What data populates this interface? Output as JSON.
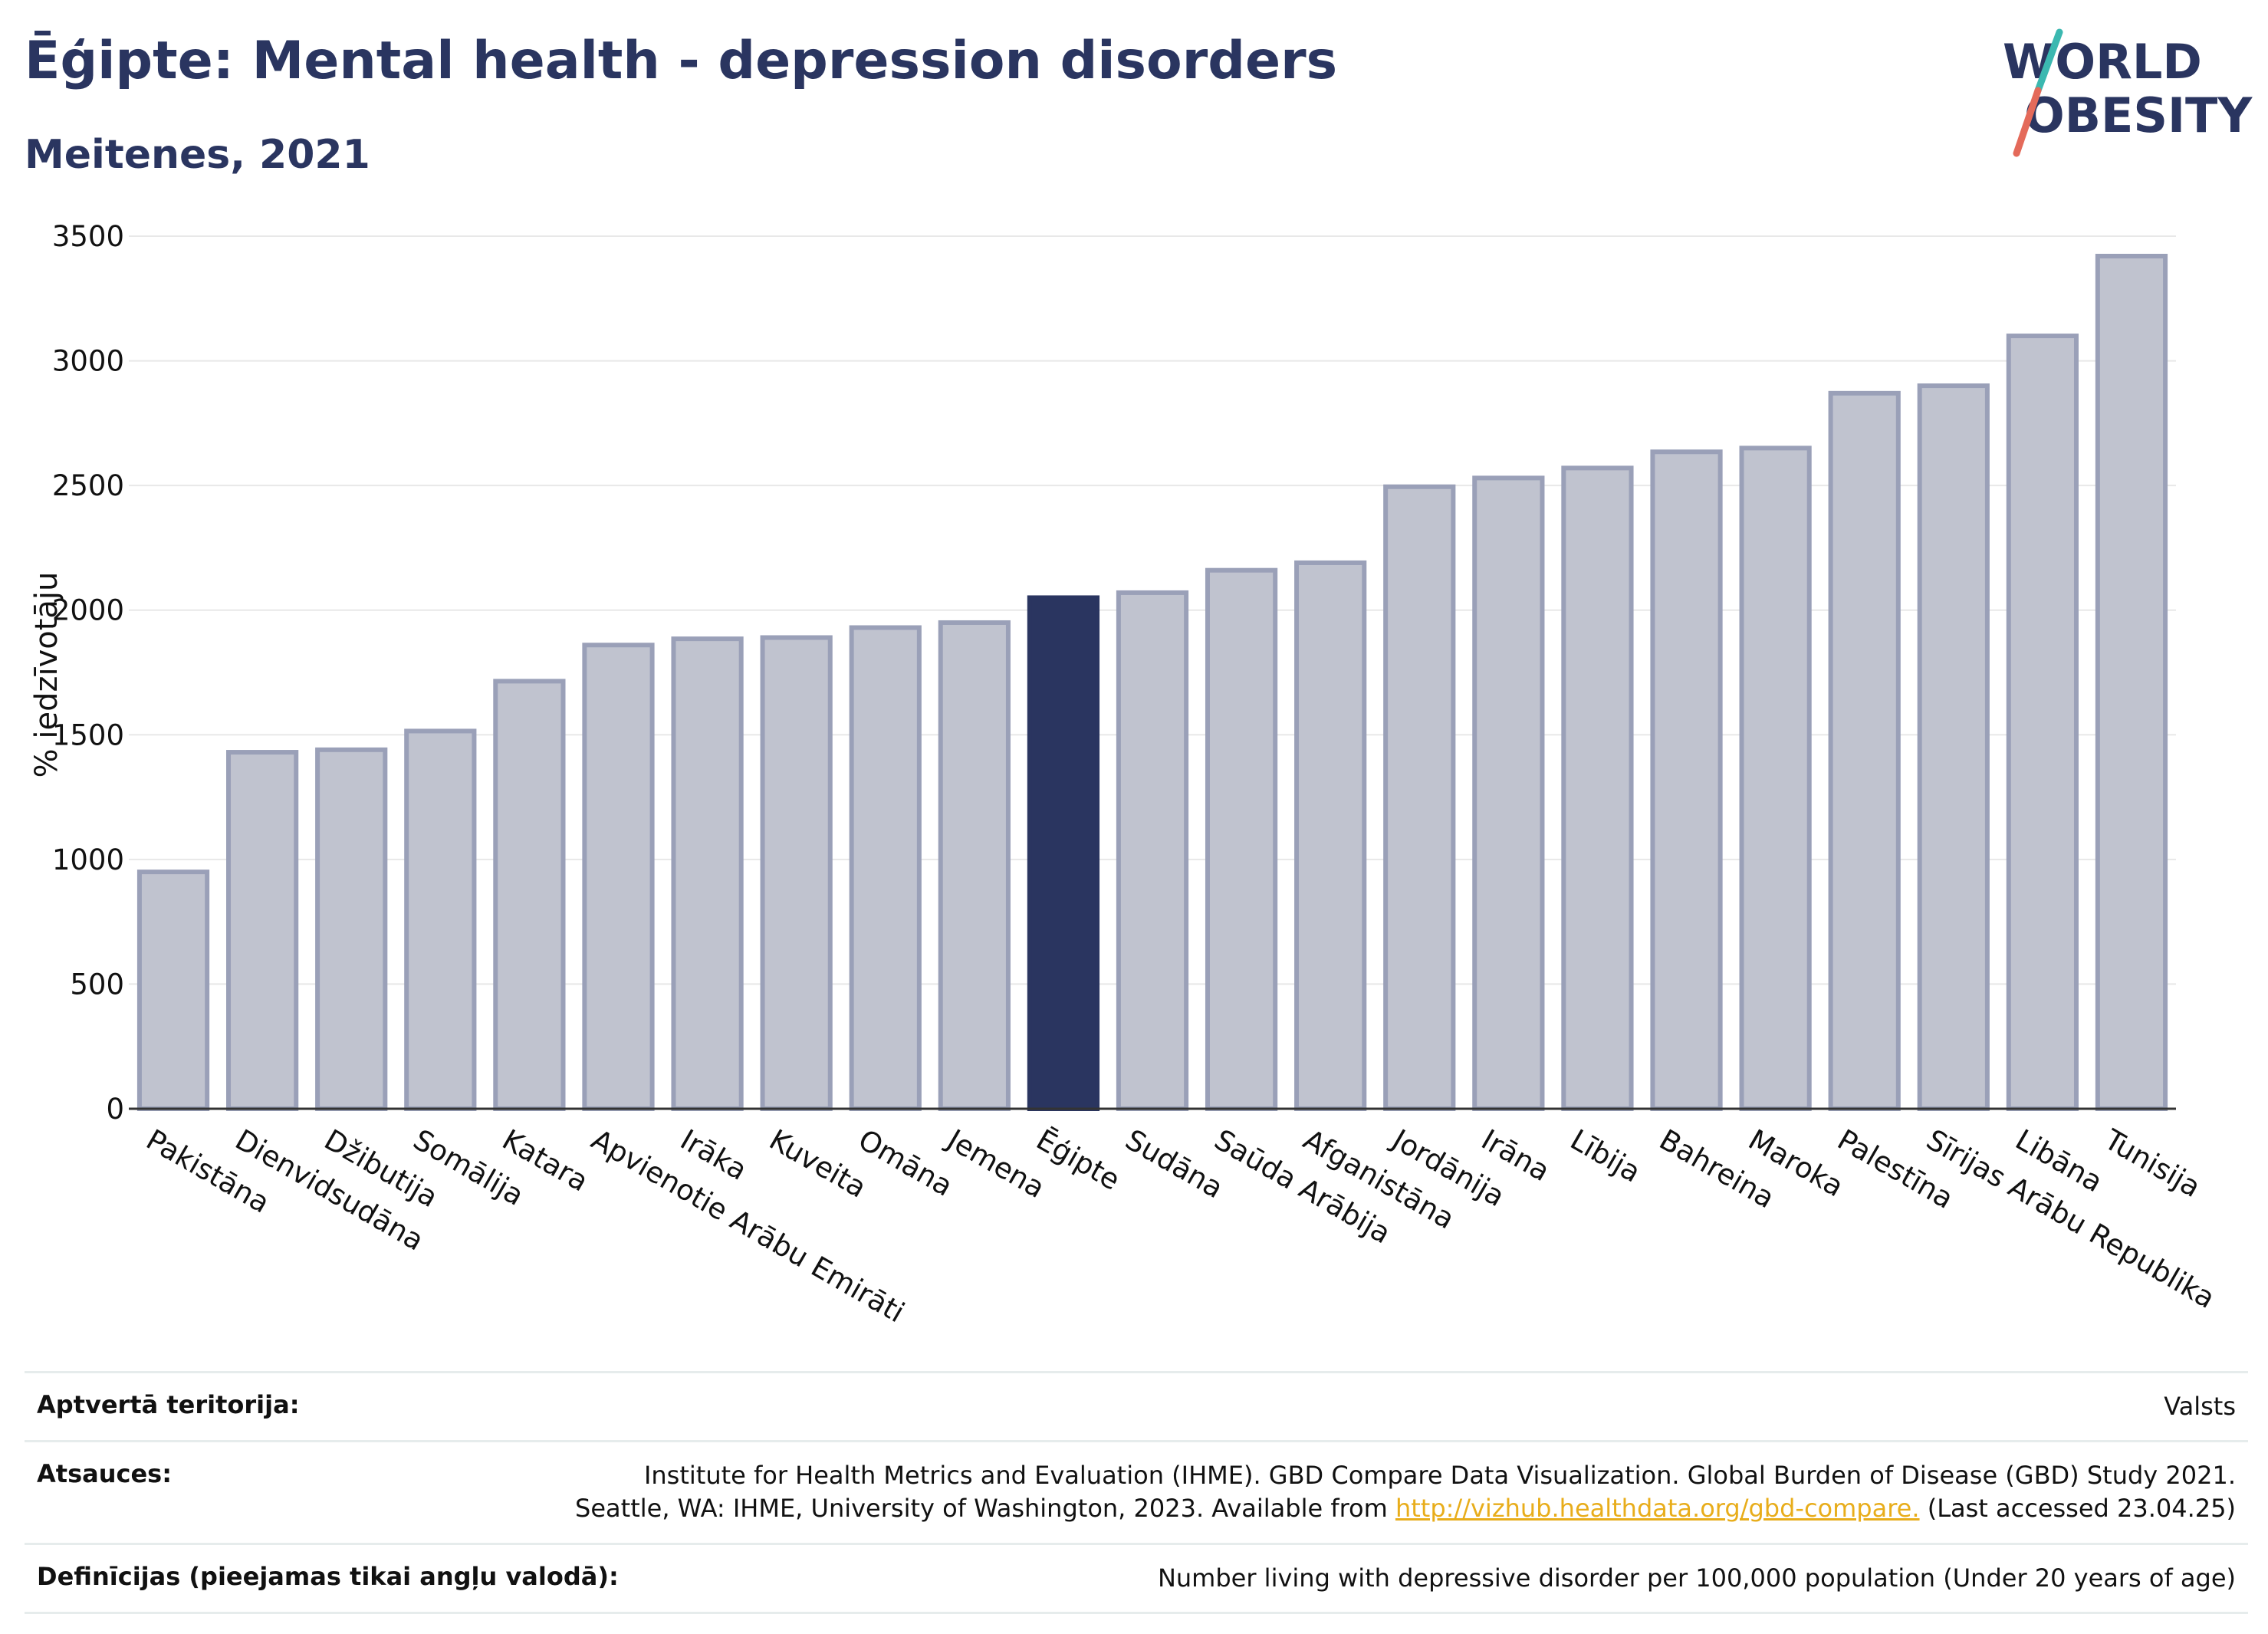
{
  "header": {
    "title": "Ēģipte: Mental health - depression disorders",
    "subtitle": "Meitenes, 2021"
  },
  "logo": {
    "line1": "WORLD",
    "line2": "OBESITY",
    "colors": {
      "text": "#2a3560",
      "slash_top": "#3bb8b0",
      "slash_bottom": "#e46a5a"
    }
  },
  "chart_data": {
    "type": "bar",
    "ylabel": "% iedzīvotāju",
    "xlabel": "",
    "ylim": [
      0,
      3500
    ],
    "yticks": [
      0,
      500,
      1000,
      1500,
      2000,
      2500,
      3000,
      3500
    ],
    "grid": "horizontal",
    "highlight": "Ēģipte",
    "colors": {
      "bar": "#c0c3cf",
      "bar_border": "#9aa0b8",
      "highlight": "#2a3560",
      "grid": "#e8e8e8",
      "axis": "#333333"
    },
    "categories": [
      "Pakistāna",
      "Dienvidsudāna",
      "Džibutija",
      "Somālija",
      "Katara",
      "Apvienotie Arābu Emirāti",
      "Irāka",
      "Kuveita",
      "Omāna",
      "Jemena",
      "Ēģipte",
      "Sudāna",
      "Saūda Arābija",
      "Afganistāna",
      "Jordānija",
      "Irāna",
      "Lībija",
      "Bahreina",
      "Maroka",
      "Palestīna",
      "Sīrijas Arābu Republika",
      "Libāna",
      "Tunisija"
    ],
    "values": [
      950,
      1430,
      1440,
      1515,
      1715,
      1860,
      1885,
      1890,
      1930,
      1950,
      2050,
      2070,
      2160,
      2190,
      2495,
      2530,
      2570,
      2635,
      2650,
      2870,
      2900,
      3100,
      3420
    ]
  },
  "info": {
    "rows": [
      {
        "label": "Aptvertā teritorija:",
        "value_lines": [
          "Valsts"
        ]
      },
      {
        "label": "Atsauces:",
        "value_lines": [
          "Institute for Health Metrics and Evaluation (IHME). GBD Compare Data Visualization. Global Burden of Disease (GBD) Study 2021."
        ],
        "value_line2_pre": "Seattle, WA: IHME, University of Washington, 2023. Available from ",
        "value_line2_link": "http://vizhub.healthdata.org/gbd-compare.",
        "value_line2_post": " (Last accessed 23.04.25)"
      },
      {
        "label": "Definīcijas (pieejamas tikai angļu valodā):",
        "value_lines": [
          "Number living with depressive disorder per 100,000 population (Under 20 years of age)"
        ]
      }
    ]
  }
}
